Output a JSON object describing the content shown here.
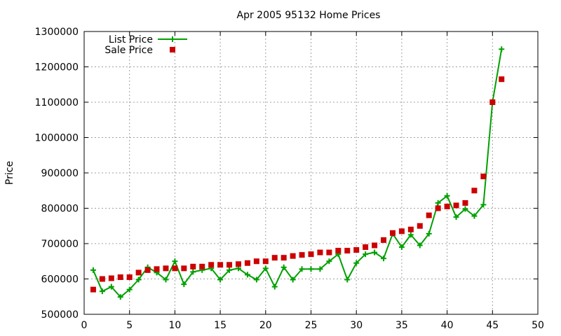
{
  "chart_data": {
    "type": "line",
    "title": "Apr 2005 95132 Home Prices",
    "xlabel": "",
    "ylabel": "Price",
    "xlim": [
      0,
      50
    ],
    "ylim": [
      500000,
      1300000
    ],
    "xticks": [
      "0",
      "5",
      "10",
      "15",
      "20",
      "25",
      "30",
      "35",
      "40",
      "45",
      "50"
    ],
    "yticks": [
      "500000",
      "600000",
      "700000",
      "800000",
      "900000",
      "1000000",
      "1100000",
      "1200000",
      "1300000"
    ],
    "grid": true,
    "legend_position": "top-left",
    "series": [
      {
        "name": "List Price",
        "style": "line with plus markers",
        "color": "#00a000",
        "x": [
          1,
          2,
          3,
          4,
          5,
          6,
          7,
          8,
          9,
          10,
          11,
          12,
          13,
          14,
          15,
          16,
          17,
          18,
          19,
          20,
          21,
          22,
          23,
          24,
          25,
          26,
          27,
          28,
          29,
          30,
          31,
          32,
          33,
          34,
          35,
          36,
          37,
          38,
          39,
          40,
          41,
          42,
          43,
          44,
          45,
          46
        ],
        "values": [
          625000,
          565000,
          578000,
          549000,
          570000,
          598000,
          633000,
          618000,
          598000,
          650000,
          585000,
          620000,
          625000,
          630000,
          598000,
          625000,
          630000,
          612000,
          598000,
          630000,
          578000,
          633000,
          598000,
          628000,
          628000,
          628000,
          650000,
          670000,
          598000,
          645000,
          670000,
          675000,
          658000,
          728000,
          690000,
          725000,
          695000,
          728000,
          815000,
          835000,
          775000,
          798000,
          778000,
          810000,
          1100000,
          1250000
        ]
      },
      {
        "name": "Sale Price",
        "style": "square markers",
        "color": "#cc0000",
        "x": [
          1,
          2,
          3,
          4,
          5,
          6,
          7,
          8,
          9,
          10,
          11,
          12,
          13,
          14,
          15,
          16,
          17,
          18,
          19,
          20,
          21,
          22,
          23,
          24,
          25,
          26,
          27,
          28,
          29,
          30,
          31,
          32,
          33,
          34,
          35,
          36,
          37,
          38,
          39,
          40,
          41,
          42,
          43,
          44,
          45,
          46
        ],
        "values": [
          570000,
          600000,
          602000,
          605000,
          605000,
          618000,
          625000,
          628000,
          630000,
          630000,
          630000,
          635000,
          635000,
          640000,
          640000,
          640000,
          642000,
          645000,
          650000,
          650000,
          660000,
          660000,
          665000,
          668000,
          670000,
          675000,
          675000,
          680000,
          680000,
          682000,
          690000,
          695000,
          710000,
          730000,
          735000,
          740000,
          750000,
          780000,
          800000,
          805000,
          808000,
          815000,
          850000,
          890000,
          1100000,
          1165000
        ]
      }
    ]
  }
}
